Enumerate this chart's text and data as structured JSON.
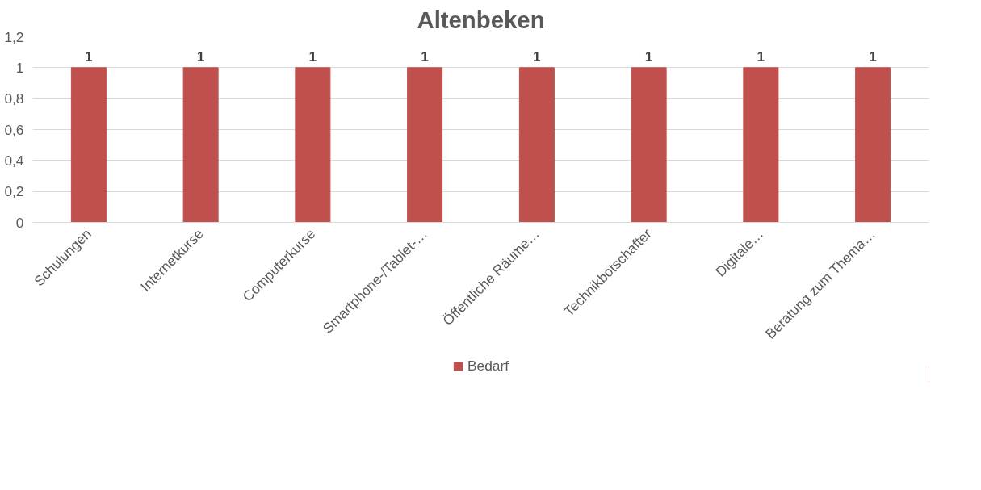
{
  "chart_data": {
    "type": "bar",
    "title": "Altenbeken",
    "categories": [
      "Schulungen",
      "Internetkurse",
      "Computerkurse",
      "Smartphone-/Tablet-…",
      "Öffentliche Räume…",
      "Technikbotschafter",
      "Digitale…",
      "Beratung zum Thema…"
    ],
    "series": [
      {
        "name": "Bedarf",
        "color": "#c0504d",
        "values": [
          1,
          1,
          1,
          1,
          1,
          1,
          1,
          1
        ]
      }
    ],
    "ylim": [
      0,
      1.2
    ],
    "yticks": [
      0,
      {
        "value": 0.2,
        "label": "0,2"
      },
      {
        "value": 0.4,
        "label": "0,4"
      },
      {
        "value": 0.6,
        "label": "0,6"
      },
      {
        "value": 0.8,
        "label": "0,8"
      },
      1,
      {
        "value": 1.2,
        "label": "1,2"
      }
    ],
    "grid": "y",
    "legend": "bottom",
    "data_labels": true
  }
}
